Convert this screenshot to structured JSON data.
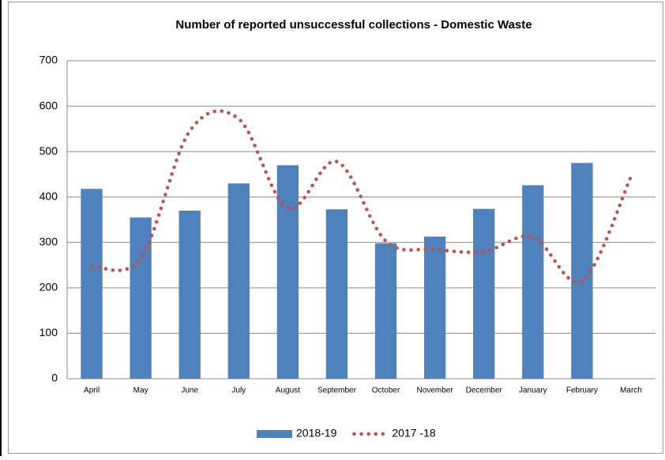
{
  "chart_data": {
    "type": "bar",
    "title": "Number of reported unsuccessful collections - Domestic Waste",
    "categories": [
      "April",
      "May",
      "June",
      "July",
      "August",
      "September",
      "October",
      "November",
      "December",
      "January",
      "February",
      "March"
    ],
    "series": [
      {
        "name": "2018-19",
        "type": "bar",
        "color": "#4f81bd",
        "values": [
          418,
          355,
          370,
          430,
          470,
          373,
          298,
          313,
          374,
          426,
          475,
          null
        ]
      },
      {
        "name": "2017 -18",
        "type": "line",
        "color": "#c0504d",
        "values": [
          248,
          265,
          545,
          572,
          375,
          478,
          303,
          285,
          280,
          312,
          215,
          445
        ]
      }
    ],
    "ylim": [
      0,
      700
    ],
    "yticks": [
      0,
      100,
      200,
      300,
      400,
      500,
      600,
      700
    ],
    "grid": true,
    "legend": "bottom"
  }
}
